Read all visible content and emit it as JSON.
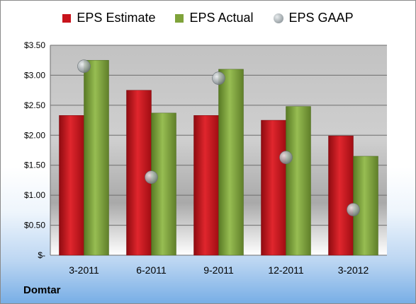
{
  "legend": {
    "estimate_label": "EPS Estimate",
    "actual_label": "EPS Actual",
    "gaap_label": "EPS GAAP"
  },
  "footer": {
    "company": "Domtar"
  },
  "colors": {
    "estimate": "#c8141c",
    "actual": "#7fa33a",
    "gaap": "#9aa2a6"
  },
  "chart_data": {
    "type": "bar",
    "categories": [
      "3-2011",
      "6-2011",
      "9-2011",
      "12-2011",
      "3-2012"
    ],
    "series": [
      {
        "name": "EPS Estimate",
        "type": "bar",
        "values": [
          2.33,
          2.75,
          2.33,
          2.25,
          1.99
        ]
      },
      {
        "name": "EPS Actual",
        "type": "bar",
        "values": [
          3.25,
          2.37,
          3.1,
          2.48,
          1.65
        ]
      },
      {
        "name": "EPS GAAP",
        "type": "scatter",
        "values": [
          3.15,
          1.3,
          2.95,
          1.63,
          0.76
        ]
      }
    ],
    "y_ticks": [
      "$-",
      "$0.50",
      "$1.00",
      "$1.50",
      "$2.00",
      "$2.50",
      "$3.00",
      "$3.50"
    ],
    "ylim": [
      0,
      3.5
    ],
    "grid": true,
    "legend_position": "top"
  }
}
